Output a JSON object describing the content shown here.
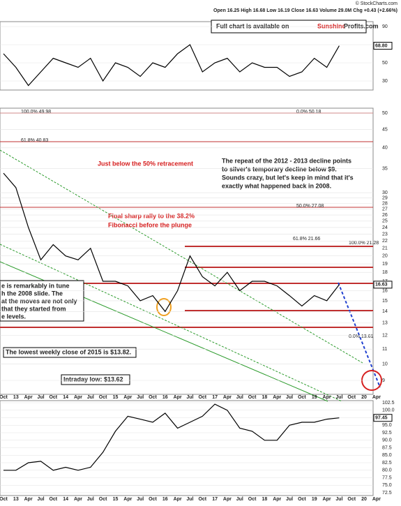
{
  "header": {
    "source": "© StockCharts.com",
    "quote": "Open 16.25  High 16.68  Low 16.19  Close 16.63  Volume 29.0M  Chg +0.43 (+2.66%)"
  },
  "banner": {
    "text": "Full chart is available on",
    "brand_a": "Sunshine",
    "brand_b": "Profits.com"
  },
  "chart_data": [
    {
      "type": "line",
      "color": "#000000",
      "ylim": [
        20,
        95
      ],
      "yticks": [
        30,
        50,
        70,
        90
      ],
      "values": [
        60,
        45,
        25,
        40,
        55,
        50,
        45,
        55,
        30,
        50,
        45,
        35,
        50,
        45,
        60,
        70,
        40,
        50,
        55,
        40,
        50,
        45,
        45,
        35,
        40,
        55,
        45,
        68.8,
        null,
        null,
        null
      ],
      "last_value_label": "68.80"
    },
    {
      "type": "line",
      "color": "#000000",
      "log": true,
      "ylim": [
        9,
        50
      ],
      "yticks": [
        9,
        10,
        11,
        12,
        13,
        14,
        15,
        16,
        17,
        18,
        19,
        20,
        21,
        22,
        23,
        24,
        25,
        26,
        27,
        28,
        29,
        30,
        35,
        40,
        45,
        50
      ],
      "categories": [
        "Oct",
        "13",
        "Apr",
        "Jul",
        "Oct",
        "14",
        "Apr",
        "Jul",
        "Oct",
        "15",
        "Apr",
        "Jul",
        "Oct",
        "16",
        "Apr",
        "Jul",
        "Oct",
        "17",
        "Apr",
        "Jul",
        "Oct",
        "18",
        "Apr",
        "Jul",
        "Oct",
        "19",
        "Apr",
        "Jul",
        "Oct",
        "20",
        "Apr"
      ],
      "values": [
        34,
        31,
        24,
        19.5,
        21.5,
        20,
        19.5,
        21,
        17,
        17,
        16.5,
        15,
        15.5,
        14,
        16,
        20,
        17.5,
        16.5,
        18,
        16,
        17,
        17,
        16.5,
        15.5,
        14.5,
        15.5,
        15,
        16.63,
        null,
        null,
        null
      ],
      "last_value_label": "16.63",
      "fib_labels": [
        "100.0% 49.98",
        "0.0% 50.18",
        "61.8% 40.83",
        "50.0% 27.08",
        "61.8% 21.66",
        "100.0% 21.28",
        "0.0% 13.61"
      ],
      "annotations": [
        "Just below the 50% retracement",
        [
          "The repeat of the 2012 - 2013 decline points",
          "to silver's temporary decline below $9.",
          "Sounds crazy, but let's keep in mind that it's",
          "exactly what happened back in 2008."
        ],
        [
          "Final sharp rally to the 38.2%",
          "Fibonacci before the plunge"
        ],
        [
          "e is remarkably in tune",
          "h the 2008 slide. The",
          "at the moves are not only",
          "that they started from",
          "e levels."
        ],
        "The lowest weekly close of 2015 is $13.82.",
        "Intraday low: $13.62"
      ]
    },
    {
      "type": "line",
      "color": "#000000",
      "ylim": [
        72.5,
        102.5
      ],
      "yticks": [
        102.5,
        {
          "value": 100,
          "label": "100.0"
        },
        97.5,
        {
          "value": 95,
          "label": "95.0"
        },
        92.5,
        {
          "value": 90,
          "label": "90.0"
        },
        87.5,
        {
          "value": 85,
          "label": "85.0"
        },
        82.5,
        {
          "value": 80,
          "label": "80.0"
        },
        77.5,
        {
          "value": 75,
          "label": "75.0"
        },
        72.5
      ],
      "categories": [
        "Oct",
        "13",
        "Apr",
        "Jul",
        "Oct",
        "14",
        "Apr",
        "Jul",
        "Oct",
        "15",
        "Apr",
        "Jul",
        "Oct",
        "16",
        "Apr",
        "Jul",
        "Oct",
        "17",
        "Apr",
        "Jul",
        "Oct",
        "18",
        "Apr",
        "Jul",
        "Oct",
        "19",
        "Apr",
        "Jul",
        "Oct",
        "20",
        "Apr"
      ],
      "values": [
        80,
        80,
        82.5,
        83,
        80,
        81,
        80,
        81,
        86,
        93,
        98,
        97,
        96,
        99,
        94,
        96,
        98,
        102,
        100,
        94,
        93,
        90,
        90,
        95,
        96,
        96,
        97,
        97.45,
        null,
        null,
        null
      ],
      "last_value_label": "97.45"
    }
  ]
}
